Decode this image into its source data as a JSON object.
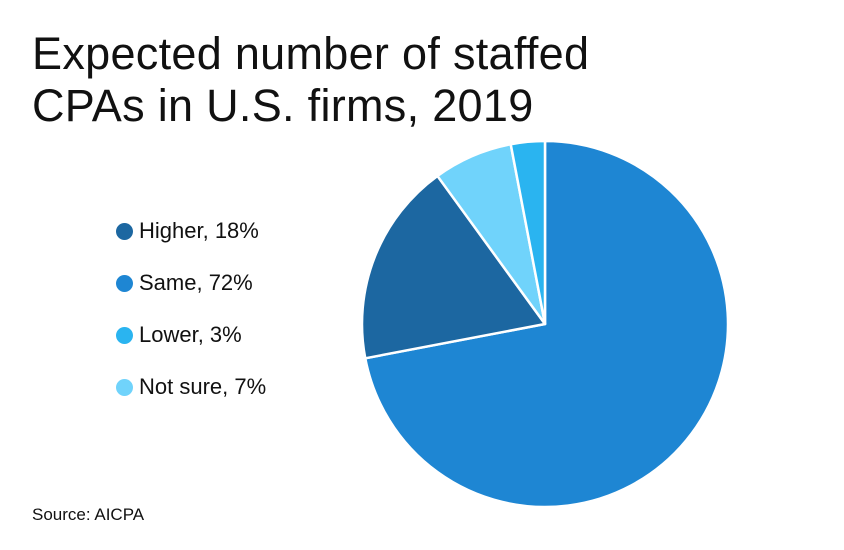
{
  "chart_data": {
    "type": "pie",
    "title_lines": [
      "Expected number of staffed",
      "CPAs in U.S. firms, 2019"
    ],
    "legend_position": "left",
    "slices": [
      {
        "label": "Higher, 18%",
        "name": "Higher",
        "value": 18,
        "color": "#1c67a1"
      },
      {
        "label": "Same, 72%",
        "name": "Same",
        "value": 72,
        "color": "#1e86d3"
      },
      {
        "label": "Lower, 3%",
        "name": "Lower",
        "value": 3,
        "color": "#2ab4f0"
      },
      {
        "label": "Not sure, 7%",
        "name": "Not sure",
        "value": 7,
        "color": "#70d3fb"
      }
    ],
    "draw_order_clockwise_from_top": [
      "Same",
      "Higher",
      "Not sure",
      "Lower"
    ],
    "source": "Source: AICPA"
  }
}
